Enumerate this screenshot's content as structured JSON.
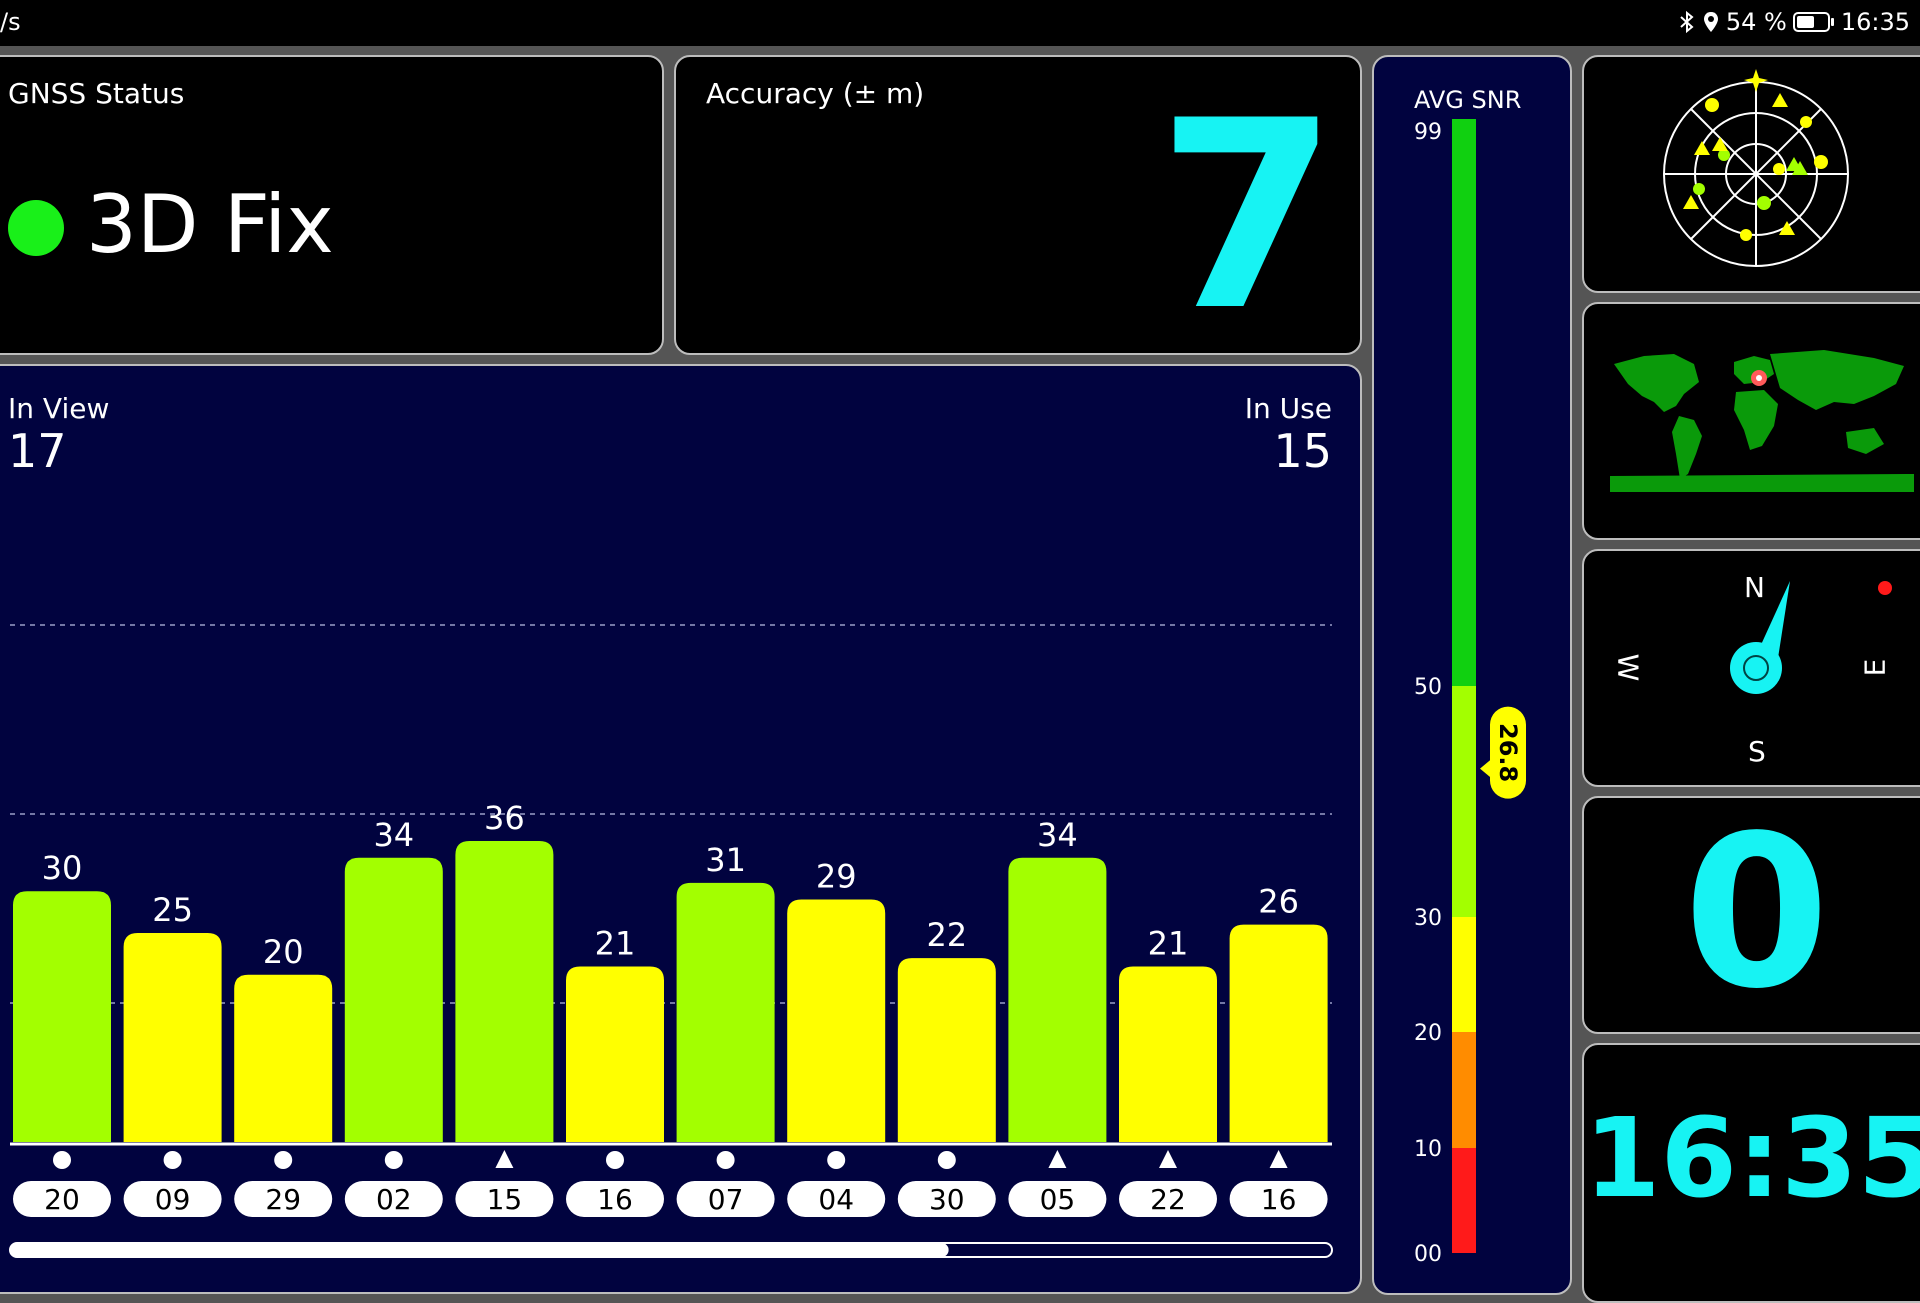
{
  "status_bar": {
    "left_text": "/s",
    "battery": "54 %",
    "time": "16:35",
    "icons": [
      "bluetooth-icon",
      "location-icon",
      "battery-icon"
    ]
  },
  "gnss_status": {
    "label": "GNSS Status",
    "value": "3D Fix",
    "indicator_color": "#19f019"
  },
  "accuracy": {
    "label": "Accuracy (± m)",
    "value": "7"
  },
  "satellites": {
    "in_view_label": "In View",
    "in_view": "17",
    "in_use_label": "In Use",
    "in_use": "15",
    "list": [
      {
        "id": "20",
        "snr": 30,
        "label": "30",
        "shape": "circle",
        "color": "#a3ff00"
      },
      {
        "id": "09",
        "snr": 25,
        "label": "25",
        "shape": "circle",
        "color": "#ffff00"
      },
      {
        "id": "29",
        "snr": 20,
        "label": "20",
        "shape": "circle",
        "color": "#ffff00"
      },
      {
        "id": "02",
        "snr": 34,
        "label": "34",
        "shape": "circle",
        "color": "#a3ff00"
      },
      {
        "id": "15",
        "snr": 36,
        "label": "36",
        "shape": "triangle",
        "color": "#a3ff00"
      },
      {
        "id": "16",
        "snr": 21,
        "label": "21",
        "shape": "circle",
        "color": "#ffff00"
      },
      {
        "id": "07",
        "snr": 31,
        "label": "31",
        "shape": "circle",
        "color": "#a3ff00"
      },
      {
        "id": "04",
        "snr": 29,
        "label": "29",
        "shape": "circle",
        "color": "#ffff00"
      },
      {
        "id": "30",
        "snr": 22,
        "label": "22",
        "shape": "circle",
        "color": "#ffff00"
      },
      {
        "id": "05",
        "snr": 34,
        "label": "34",
        "shape": "triangle",
        "color": "#a3ff00"
      },
      {
        "id": "22",
        "snr": 21,
        "label": "21",
        "shape": "triangle",
        "color": "#ffff00"
      },
      {
        "id": "16",
        "snr": 26,
        "label": "26",
        "shape": "triangle",
        "color": "#ffff00"
      }
    ],
    "scroll_fraction": 0.71
  },
  "snr_scale": {
    "title": "AVG SNR",
    "ticks": [
      "99",
      "50",
      "30",
      "20",
      "10",
      "00"
    ],
    "avg_value": "26.8",
    "avg": 26.8
  },
  "speed": {
    "value": "0"
  },
  "clock": {
    "value": "16:35"
  },
  "compass": {
    "n": "N",
    "s": "S",
    "e": "E",
    "w": "W",
    "heading_deg": 20
  }
}
